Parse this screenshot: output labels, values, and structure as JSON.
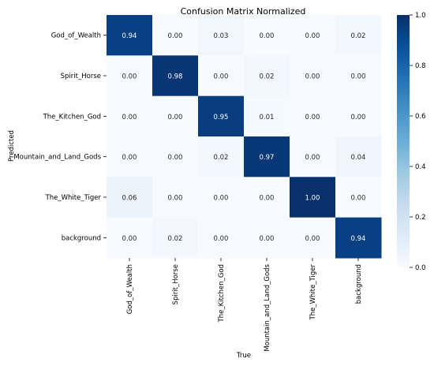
{
  "chart_data": {
    "type": "heatmap",
    "title": "Confusion Matrix Normalized",
    "xlabel": "True",
    "ylabel": "Predicted",
    "x_categories": [
      "God_of_Wealth",
      "Spirit_Horse",
      "The_Kitchen_God",
      "Mountain_and_Land_Gods",
      "The_White_Tiger",
      "background"
    ],
    "y_categories": [
      "God_of_Wealth",
      "Spirit_Horse",
      "The_Kitchen_God",
      "Mountain_and_Land_Gods",
      "The_White_Tiger",
      "background"
    ],
    "values": [
      [
        0.94,
        0.0,
        0.03,
        0.0,
        0.0,
        0.02
      ],
      [
        0.0,
        0.98,
        0.0,
        0.02,
        0.0,
        0.0
      ],
      [
        0.0,
        0.0,
        0.95,
        0.01,
        0.0,
        0.0
      ],
      [
        0.0,
        0.0,
        0.02,
        0.97,
        0.0,
        0.04
      ],
      [
        0.06,
        0.0,
        0.0,
        0.0,
        1.0,
        0.0
      ],
      [
        0.0,
        0.02,
        0.0,
        0.0,
        0.0,
        0.94
      ]
    ],
    "value_labels": [
      [
        "0.94",
        "0.00",
        "0.03",
        "0.00",
        "0.00",
        "0.02"
      ],
      [
        "0.00",
        "0.98",
        "0.00",
        "0.02",
        "0.00",
        "0.00"
      ],
      [
        "0.00",
        "0.00",
        "0.95",
        "0.01",
        "0.00",
        "0.00"
      ],
      [
        "0.00",
        "0.00",
        "0.02",
        "0.97",
        "0.00",
        "0.04"
      ],
      [
        "0.06",
        "0.00",
        "0.00",
        "0.00",
        "1.00",
        "0.00"
      ],
      [
        "0.00",
        "0.02",
        "0.00",
        "0.00",
        "0.00",
        "0.94"
      ]
    ],
    "colorbar": {
      "range": [
        0.0,
        1.0
      ],
      "ticks": [
        "0.0",
        "0.2",
        "0.4",
        "0.6",
        "0.8",
        "1.0"
      ],
      "colormap": "Blues",
      "low_color": "#f7fbff",
      "high_color": "#08306b"
    }
  }
}
